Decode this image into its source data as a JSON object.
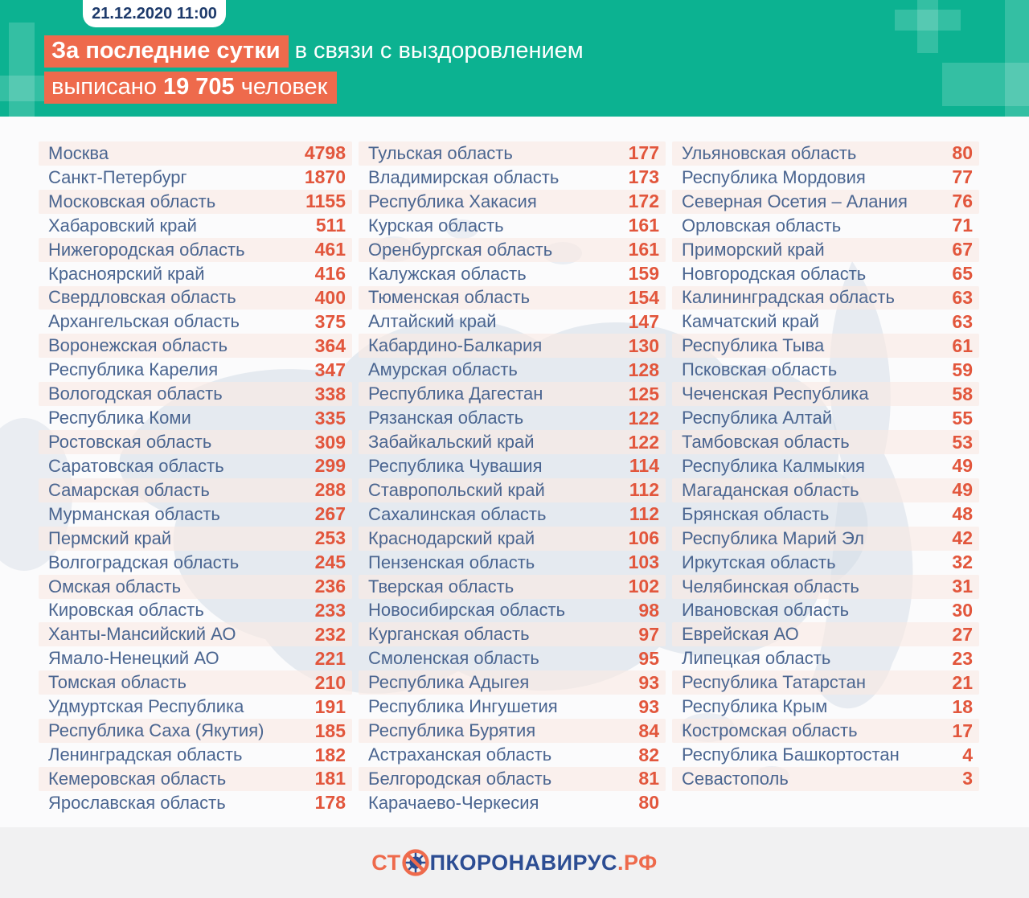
{
  "header": {
    "date_badge": "21.12.2020 11:00",
    "headline": {
      "highlight1": "За последние сутки",
      "rest1": "в связи с выздоровлением",
      "line2_prefix": "выписано ",
      "line2_number": "19 705",
      "line2_suffix": " человек"
    }
  },
  "chart_data": {
    "type": "table",
    "title": "За последние сутки в связи с выздоровлением выписано 19 705 человек",
    "datetime": "21.12.2020 11:00",
    "columns": [
      [
        {
          "region": "Москва",
          "value": 4798
        },
        {
          "region": "Санкт-Петербург",
          "value": 1870
        },
        {
          "region": "Московская область",
          "value": 1155
        },
        {
          "region": "Хабаровский край",
          "value": 511
        },
        {
          "region": "Нижегородская область",
          "value": 461
        },
        {
          "region": "Красноярский край",
          "value": 416
        },
        {
          "region": "Свердловская область",
          "value": 400
        },
        {
          "region": "Архангельская область",
          "value": 375
        },
        {
          "region": "Воронежская область",
          "value": 364
        },
        {
          "region": "Республика Карелия",
          "value": 347
        },
        {
          "region": "Вологодская область",
          "value": 338
        },
        {
          "region": "Республика Коми",
          "value": 335
        },
        {
          "region": "Ростовская область",
          "value": 309
        },
        {
          "region": "Саратовская область",
          "value": 299
        },
        {
          "region": "Самарская область",
          "value": 288
        },
        {
          "region": "Мурманская область",
          "value": 267
        },
        {
          "region": "Пермский край",
          "value": 253
        },
        {
          "region": "Волгоградская область",
          "value": 245
        },
        {
          "region": "Омская область",
          "value": 236
        },
        {
          "region": "Кировская область",
          "value": 233
        },
        {
          "region": "Ханты-Мансийский АО",
          "value": 232
        },
        {
          "region": "Ямало-Ненецкий АО",
          "value": 221
        },
        {
          "region": "Томская область",
          "value": 210
        },
        {
          "region": "Удмуртская Республика",
          "value": 191
        },
        {
          "region": "Республика Саха (Якутия)",
          "value": 185
        },
        {
          "region": "Ленинградская область",
          "value": 182
        },
        {
          "region": "Кемеровская область",
          "value": 181
        },
        {
          "region": "Ярославская область",
          "value": 178
        }
      ],
      [
        {
          "region": "Тульская область",
          "value": 177
        },
        {
          "region": "Владимирская область",
          "value": 173
        },
        {
          "region": "Республика Хакасия",
          "value": 172
        },
        {
          "region": "Курская область",
          "value": 161
        },
        {
          "region": "Оренбургская область",
          "value": 161
        },
        {
          "region": "Калужская область",
          "value": 159
        },
        {
          "region": "Тюменская область",
          "value": 154
        },
        {
          "region": "Алтайский край",
          "value": 147
        },
        {
          "region": "Кабардино-Балкария",
          "value": 130
        },
        {
          "region": "Амурская область",
          "value": 128
        },
        {
          "region": "Республика Дагестан",
          "value": 125
        },
        {
          "region": "Рязанская область",
          "value": 122
        },
        {
          "region": "Забайкальский край",
          "value": 122
        },
        {
          "region": "Республика Чувашия",
          "value": 114
        },
        {
          "region": "Ставропольский край",
          "value": 112
        },
        {
          "region": "Сахалинская область",
          "value": 112
        },
        {
          "region": "Краснодарский край",
          "value": 106
        },
        {
          "region": "Пензенская область",
          "value": 103
        },
        {
          "region": "Тверская область",
          "value": 102
        },
        {
          "region": "Новосибирская область",
          "value": 98
        },
        {
          "region": "Курганская область",
          "value": 97
        },
        {
          "region": "Смоленская область",
          "value": 95
        },
        {
          "region": "Республика Адыгея",
          "value": 93
        },
        {
          "region": "Республика Ингушетия",
          "value": 93
        },
        {
          "region": "Республика Бурятия",
          "value": 84
        },
        {
          "region": "Астраханская область",
          "value": 82
        },
        {
          "region": "Белгородская область",
          "value": 81
        },
        {
          "region": "Карачаево-Черкесия",
          "value": 80
        }
      ],
      [
        {
          "region": "Ульяновская область",
          "value": 80
        },
        {
          "region": "Республика Мордовия",
          "value": 77
        },
        {
          "region": "Северная Осетия – Алания",
          "value": 76
        },
        {
          "region": "Орловская область",
          "value": 71
        },
        {
          "region": "Приморский край",
          "value": 67
        },
        {
          "region": "Новгородская область",
          "value": 65
        },
        {
          "region": "Калининградская область",
          "value": 63
        },
        {
          "region": "Камчатский край",
          "value": 63
        },
        {
          "region": "Республика Тыва",
          "value": 61
        },
        {
          "region": "Псковская область",
          "value": 59
        },
        {
          "region": "Чеченская Республика",
          "value": 58
        },
        {
          "region": "Республика Алтай",
          "value": 55
        },
        {
          "region": "Тамбовская область",
          "value": 53
        },
        {
          "region": "Республика Калмыкия",
          "value": 49
        },
        {
          "region": "Магаданская область",
          "value": 49
        },
        {
          "region": "Брянская область",
          "value": 48
        },
        {
          "region": "Республика Марий Эл",
          "value": 42
        },
        {
          "region": "Иркутская область",
          "value": 32
        },
        {
          "region": "Челябинская область",
          "value": 31
        },
        {
          "region": "Ивановская область",
          "value": 30
        },
        {
          "region": "Еврейская АО",
          "value": 27
        },
        {
          "region": "Липецкая область",
          "value": 23
        },
        {
          "region": "Республика Татарстан",
          "value": 21
        },
        {
          "region": "Республика Крым",
          "value": 18
        },
        {
          "region": "Костромская область",
          "value": 17
        },
        {
          "region": "Республика Башкортостан",
          "value": 4
        },
        {
          "region": "Севастополь",
          "value": 3
        }
      ]
    ]
  },
  "footer": {
    "logo": {
      "prefix": "СТ",
      "icon": "no-virus-icon",
      "middle": "ПКОРОНАВИРУС",
      "suffix": ".РФ"
    }
  },
  "colors": {
    "background": "#0cb291",
    "accent_orange": "#ee6a4c",
    "number_orange": "#e2563c",
    "region_text": "#4a6590",
    "badge_text": "#1d3a6b",
    "logo_blue": "#2c4d93",
    "panel": "#fbfbfc",
    "footer_bg": "#f1f1f2",
    "map": "#d4dce6"
  }
}
